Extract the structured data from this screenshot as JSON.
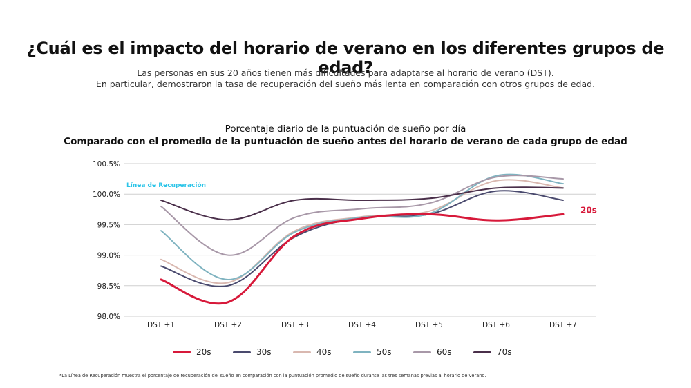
{
  "header": {
    "title": "¿Cuál es el impacto del horario de verano en los diferentes grupos de edad?",
    "subtitle_line1": "Las personas en sus 20 años tienen más dificultades para adaptarse al horario de verano (DST).",
    "subtitle_line2": "En particular, demostraron la tasa de recuperación del sueño más lenta en comparación con otros grupos de edad."
  },
  "footnote": "*La Línea de Recuperación muestra el porcentaje de recuperación del sueño en comparación con la puntuación promedio de sueño durante las tres semanas previas al horario de verano.",
  "chart_data": {
    "type": "line",
    "title_line1": "Porcentaje diario de la puntuación de sueño por día",
    "title_line2": "Comparado con el promedio de la puntuación de sueño antes del horario de verano de cada grupo de edad",
    "categories": [
      "DST +1",
      "DST +2",
      "DST +3",
      "DST +4",
      "DST +5",
      "DST +6",
      "DST +7"
    ],
    "ylim": [
      98.0,
      100.5
    ],
    "yticks": [
      "98.0%",
      "98.5%",
      "99.0%",
      "99.5%",
      "100.0%",
      "100.5%"
    ],
    "grid": true,
    "legend_position": "bottom",
    "reference_line": {
      "label": "Línea de Recuperación",
      "value": 100.0
    },
    "end_label": "20s",
    "series": [
      {
        "name": "20s",
        "color": "#d7193a",
        "width": 3,
        "values": [
          98.6,
          98.23,
          99.32,
          99.6,
          99.67,
          99.57,
          99.67
        ]
      },
      {
        "name": "30s",
        "color": "#4a4a6e",
        "width": 2,
        "values": [
          98.82,
          98.5,
          99.3,
          99.62,
          99.67,
          100.05,
          99.9
        ]
      },
      {
        "name": "40s",
        "color": "#d9b8b0",
        "width": 2,
        "values": [
          98.93,
          98.55,
          99.4,
          99.63,
          99.72,
          100.22,
          100.1
        ]
      },
      {
        "name": "50s",
        "color": "#7fb3c0",
        "width": 2,
        "values": [
          99.4,
          98.6,
          99.38,
          99.62,
          99.68,
          100.3,
          100.17
        ]
      },
      {
        "name": "60s",
        "color": "#a898a8",
        "width": 2,
        "values": [
          99.8,
          99.0,
          99.62,
          99.76,
          99.85,
          100.28,
          100.25
        ]
      },
      {
        "name": "70s",
        "color": "#4a2f4a",
        "width": 2,
        "values": [
          99.9,
          99.58,
          99.9,
          99.9,
          99.93,
          100.1,
          100.1
        ]
      }
    ],
    "colors": {
      "recovery": "#2bc4e8",
      "recovery_end": "#33c77a",
      "grid": "#cfcfcf",
      "axis_text": "#222222"
    }
  }
}
